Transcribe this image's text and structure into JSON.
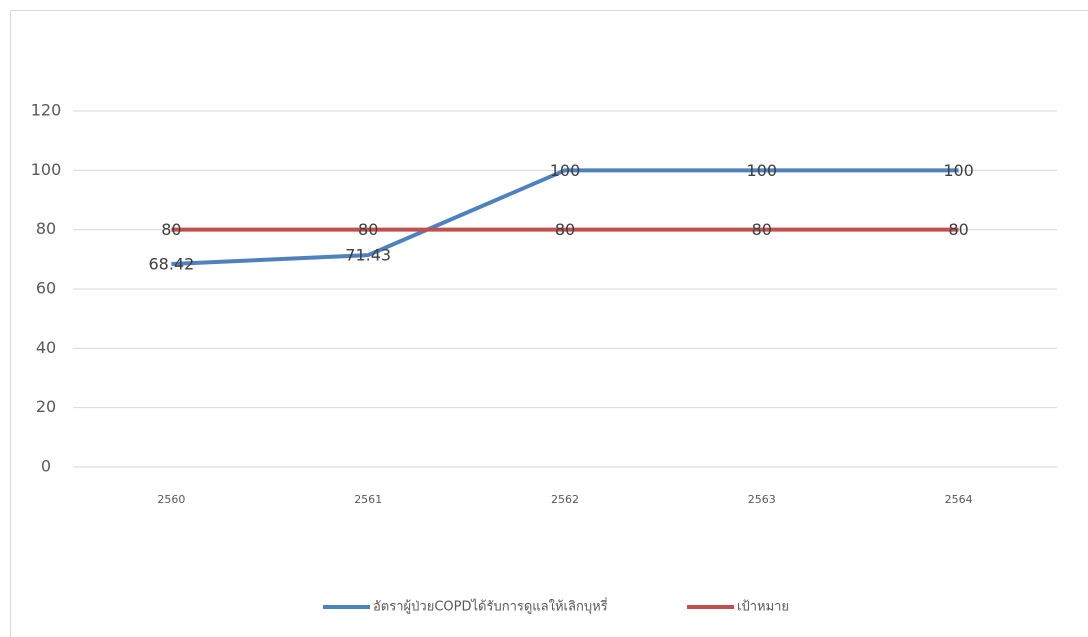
{
  "chart_data": {
    "type": "line",
    "categories": [
      "2560",
      "2561",
      "2562",
      "2563",
      "2564"
    ],
    "series": [
      {
        "name": "อัตราผู้ป่วยCOPDได้รับการดูแลให้เลิกบุหรี่",
        "color": "#4f81bd",
        "values": [
          68.42,
          71.43,
          100,
          100,
          100
        ]
      },
      {
        "name": "เป้าหมาย",
        "color": "#c0504d",
        "values": [
          80,
          80,
          80,
          80,
          80
        ]
      }
    ],
    "ylim": [
      0,
      120
    ],
    "yticks": [
      0,
      20,
      40,
      60,
      80,
      100,
      120
    ],
    "grid": true,
    "legend": "bottom"
  }
}
